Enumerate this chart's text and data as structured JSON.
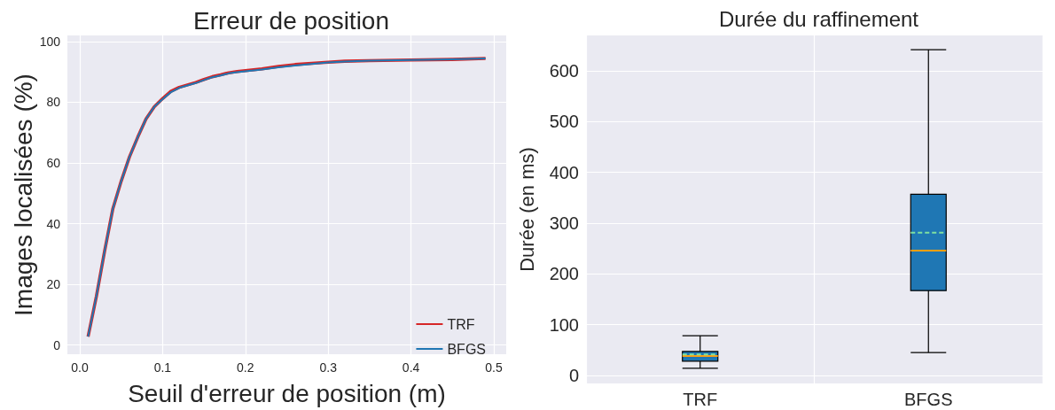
{
  "chart_data": [
    {
      "type": "line",
      "title": "Erreur de position",
      "xlabel": "Seuil d'erreur de position (m)",
      "ylabel": "Images localisées (%)",
      "x": [
        0.01,
        0.02,
        0.03,
        0.04,
        0.05,
        0.06,
        0.07,
        0.08,
        0.09,
        0.1,
        0.11,
        0.12,
        0.13,
        0.14,
        0.15,
        0.16,
        0.17,
        0.18,
        0.19,
        0.2,
        0.22,
        0.24,
        0.26,
        0.28,
        0.3,
        0.32,
        0.35,
        0.4,
        0.45,
        0.49
      ],
      "series": [
        {
          "name": "TRF",
          "color": "#d62728",
          "values": [
            2.8,
            16,
            31,
            45,
            54,
            62,
            68.5,
            74.5,
            78.5,
            81.2,
            83.6,
            84.9,
            85.7,
            86.5,
            87.5,
            88.4,
            89,
            89.7,
            90.1,
            90.4,
            91,
            91.8,
            92.4,
            92.8,
            93.2,
            93.5,
            93.7,
            93.9,
            94.1,
            94.4
          ]
        },
        {
          "name": "BFGS",
          "color": "#1f77b4",
          "values": [
            2.8,
            16,
            31,
            45,
            54,
            62,
            68.5,
            74.5,
            78.5,
            81,
            83.3,
            84.7,
            85.5,
            86.3,
            87.3,
            88.2,
            88.8,
            89.5,
            89.9,
            90.2,
            90.8,
            91.5,
            92.1,
            92.6,
            93.1,
            93.4,
            93.7,
            93.9,
            94.1,
            94.4
          ]
        }
      ],
      "xlim": [
        -0.015,
        0.515
      ],
      "xticks": [
        {
          "value": 0,
          "label": "0.0"
        },
        0.1,
        0.2,
        0.3,
        0.4,
        0.5
      ],
      "ylim": [
        -3,
        102
      ],
      "yticks": [
        0,
        20,
        40,
        60,
        80,
        100
      ],
      "grid": true,
      "legend": "bottom right",
      "marker": "none",
      "line_style": "solid"
    },
    {
      "type": "box",
      "title": "Durée du raffinement",
      "ylabel": "Durée (en ms)",
      "categories": [
        "TRF",
        "BFGS"
      ],
      "boxes": [
        {
          "low": 14,
          "q1": 28,
          "median": 38,
          "q3": 47,
          "high": 78,
          "mean": 41
        },
        {
          "low": 45,
          "q1": 167,
          "median": 246,
          "q3": 357,
          "high": 642,
          "mean": 281
        }
      ],
      "color": "#1f77b4",
      "ylim": [
        -16,
        670
      ],
      "yticks": [
        0,
        100,
        200,
        300,
        400,
        500,
        600
      ],
      "grid": true
    }
  ]
}
